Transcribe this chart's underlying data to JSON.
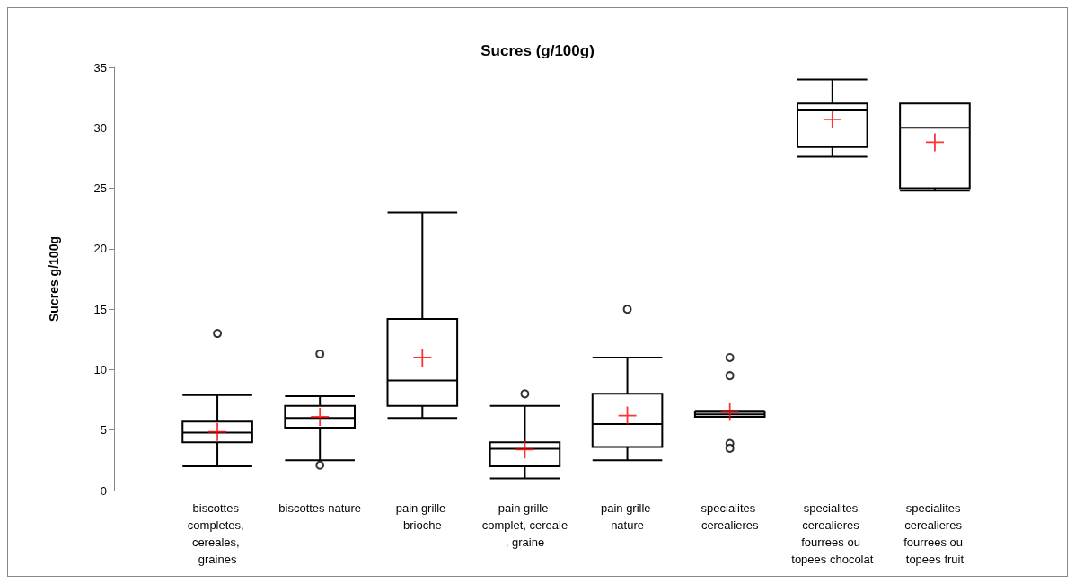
{
  "chart_data": {
    "type": "box",
    "title": "Sucres (g/100g)",
    "ylabel": "Sucres g/100g",
    "categories": [
      "biscottes completes, cereales, graines",
      "biscottes nature",
      "pain grille brioche",
      "pain grille complet, cereale, graine",
      "pain grille nature",
      "specialites cerealieres",
      "specialites cerealieres fourrees ou topees chocolat",
      "specialites cerealieres fourrees ou topees fruit"
    ],
    "boxes": [
      {
        "low": 2.0,
        "q1": 4.0,
        "median": 4.8,
        "q3": 5.7,
        "high": 7.9,
        "mean": 4.85,
        "outliers": [
          13
        ]
      },
      {
        "low": 2.5,
        "q1": 5.2,
        "median": 6.0,
        "q3": 7.0,
        "high": 7.8,
        "mean": 6.1,
        "outliers": [
          11.3,
          2.1
        ]
      },
      {
        "low": 6.0,
        "q1": 7.0,
        "median": 9.1,
        "q3": 14.2,
        "high": 23,
        "mean": 11
      },
      {
        "low": 1.0,
        "q1": 2.0,
        "median": 3.45,
        "q3": 4.0,
        "high": 7.0,
        "mean": 3.4,
        "outliers": [
          8
        ]
      },
      {
        "low": 2.5,
        "q1": 3.6,
        "median": 5.5,
        "q3": 8.0,
        "high": 11.0,
        "mean": 6.2,
        "outliers": [
          15
        ]
      },
      {
        "low": 6.1,
        "q1": 6.1,
        "median": 6.3,
        "q3": 6.5,
        "high": 6.6,
        "mean": 6.5,
        "outliers": [
          11,
          9.5,
          3.9,
          3.5
        ]
      },
      {
        "low": 27.6,
        "q1": 28.4,
        "median": 31.5,
        "q3": 32.0,
        "high": 34,
        "mean": 30.7
      },
      {
        "low": 24.8,
        "q1": 25.0,
        "median": 30.0,
        "q3": 32.0,
        "high": 32.0,
        "mean": 28.8
      }
    ],
    "ylim": [
      0,
      35
    ],
    "yticks": [
      0,
      5,
      10,
      15,
      20,
      25,
      30,
      35
    ],
    "grid": false
  }
}
